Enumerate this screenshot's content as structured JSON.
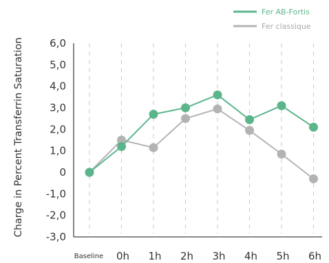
{
  "chart_data": {
    "type": "line",
    "title": "",
    "xlabel": "",
    "ylabel": "Charge in Percent Transferrin Saturation",
    "categories": [
      "Baseline",
      "0h",
      "1h",
      "2h",
      "3h",
      "4h",
      "5h",
      "6h"
    ],
    "y_ticks": [
      "6,0",
      "5,0",
      "4,0",
      "3,0",
      "2,0",
      "1,0",
      "0",
      "-1,0",
      "-2,0",
      "-3,0"
    ],
    "ylim": [
      -3,
      6
    ],
    "grid": "vertical-dashed",
    "legend_position": "top-right",
    "series": [
      {
        "name": "Fer AB-Fortis",
        "color": "#5bb58a",
        "values": [
          0,
          1.2,
          2.7,
          3.0,
          3.6,
          2.45,
          3.1,
          2.1
        ]
      },
      {
        "name": "Fer classique",
        "color": "#b3b3b3",
        "values": [
          0,
          1.5,
          1.15,
          2.5,
          2.95,
          1.95,
          0.85,
          -0.3
        ]
      }
    ]
  }
}
